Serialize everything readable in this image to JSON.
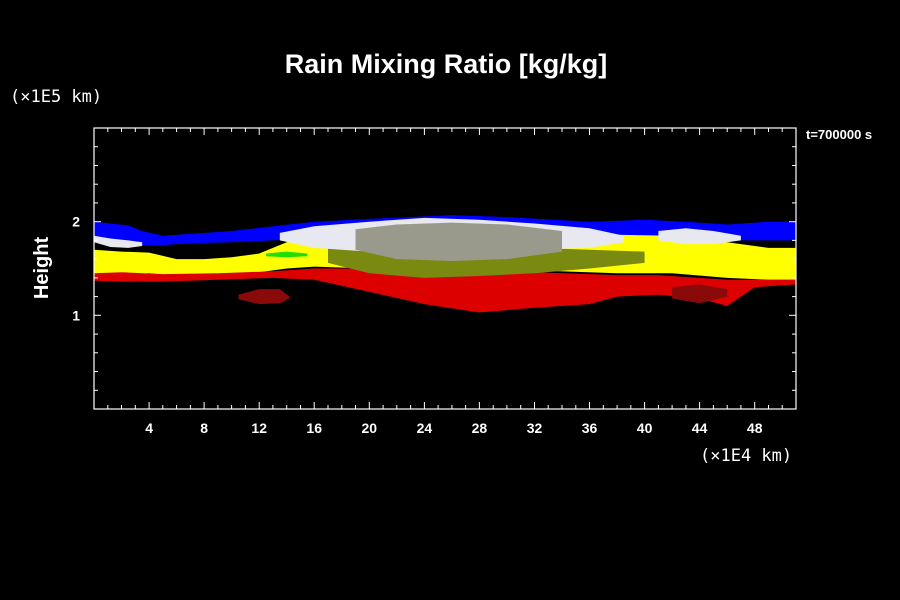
{
  "chart_data": {
    "type": "heatmap",
    "title": "Rain Mixing Ratio [kg/kg]",
    "ylabel": "Height",
    "xunit": "(×1E4 km)",
    "yunit": "(×1E5 km)",
    "annotation": "t=700000 s",
    "xlim": [
      0,
      51
    ],
    "ylim": [
      0,
      3
    ],
    "x_ticks": [
      4,
      8,
      12,
      16,
      20,
      24,
      28,
      32,
      36,
      40,
      44,
      48
    ],
    "y_ticks": [
      1,
      2
    ],
    "x_minor_step": 1,
    "y_minor_step": 0.2,
    "colors": {
      "blue": "#0000ff",
      "white": "#e8e8f0",
      "gray": "#9a9a8c",
      "yellow": "#ffff00",
      "olive": "#7a8a10",
      "green": "#22dd00",
      "red": "#dd0000",
      "darkred": "#8a0a0a"
    },
    "layers": [
      {
        "name": "upper-blue",
        "color": "blue",
        "x": [
          0,
          2.5,
          3.5,
          5,
          7,
          10,
          13,
          16,
          20,
          26,
          30,
          36,
          40,
          43,
          46,
          49,
          51
        ],
        "top": [
          2.0,
          1.96,
          1.9,
          1.85,
          1.87,
          1.9,
          1.95,
          2.0,
          2.03,
          2.07,
          2.05,
          2.0,
          2.02,
          2.0,
          1.97,
          2.0,
          2.0
        ],
        "bottom": [
          1.8,
          1.78,
          1.75,
          1.75,
          1.77,
          1.78,
          1.8,
          1.82,
          1.85,
          1.87,
          1.85,
          1.8,
          1.84,
          1.82,
          1.8,
          1.8,
          1.8
        ]
      },
      {
        "name": "yellow-band",
        "color": "yellow",
        "x": [
          0,
          2,
          4,
          6,
          8,
          10,
          12,
          14,
          16,
          20,
          26,
          32,
          38,
          42,
          46,
          49,
          51
        ],
        "top": [
          1.7,
          1.68,
          1.67,
          1.6,
          1.6,
          1.62,
          1.66,
          1.78,
          1.85,
          1.86,
          1.85,
          1.84,
          1.86,
          1.85,
          1.78,
          1.72,
          1.72
        ],
        "bottom": [
          1.42,
          1.43,
          1.45,
          1.42,
          1.43,
          1.44,
          1.46,
          1.5,
          1.52,
          1.5,
          1.48,
          1.48,
          1.45,
          1.45,
          1.4,
          1.38,
          1.38
        ]
      },
      {
        "name": "red-band",
        "color": "red",
        "x": [
          0,
          2,
          5,
          9,
          13,
          16,
          20,
          24,
          28,
          32,
          36,
          38,
          41,
          44,
          46,
          48,
          51
        ],
        "top": [
          1.45,
          1.46,
          1.44,
          1.45,
          1.47,
          1.5,
          1.5,
          1.48,
          1.46,
          1.46,
          1.44,
          1.43,
          1.43,
          1.4,
          1.38,
          1.38,
          1.38
        ],
        "bottom": [
          1.37,
          1.36,
          1.36,
          1.38,
          1.4,
          1.38,
          1.25,
          1.12,
          1.03,
          1.08,
          1.12,
          1.2,
          1.22,
          1.18,
          1.1,
          1.3,
          1.33
        ]
      },
      {
        "name": "olive-core",
        "color": "olive",
        "x": [
          17,
          20,
          24,
          28,
          32,
          36,
          40
        ],
        "top": [
          1.72,
          1.75,
          1.74,
          1.76,
          1.72,
          1.7,
          1.68
        ],
        "bottom": [
          1.56,
          1.45,
          1.4,
          1.42,
          1.45,
          1.5,
          1.56
        ]
      },
      {
        "name": "cloud-white",
        "color": "white",
        "x": [
          13.5,
          16,
          20,
          24,
          28,
          32,
          36,
          38.5
        ],
        "top": [
          1.88,
          1.95,
          2.0,
          2.04,
          2.02,
          1.98,
          1.93,
          1.85
        ],
        "bottom": [
          1.8,
          1.72,
          1.68,
          1.66,
          1.68,
          1.7,
          1.72,
          1.78
        ]
      },
      {
        "name": "cloud-core-gray",
        "color": "gray",
        "x": [
          19,
          22,
          26,
          30,
          34
        ],
        "top": [
          1.92,
          1.97,
          1.99,
          1.97,
          1.9
        ],
        "bottom": [
          1.7,
          1.6,
          1.58,
          1.6,
          1.68
        ]
      },
      {
        "name": "left-white-patch",
        "color": "white",
        "x": [
          0,
          1.2,
          2.5,
          3.5
        ],
        "top": [
          1.85,
          1.82,
          1.8,
          1.78
        ],
        "bottom": [
          1.78,
          1.73,
          1.72,
          1.74
        ]
      },
      {
        "name": "right-white-patch",
        "color": "white",
        "x": [
          41,
          43,
          45,
          47
        ],
        "top": [
          1.9,
          1.93,
          1.9,
          1.85
        ],
        "bottom": [
          1.8,
          1.76,
          1.76,
          1.8
        ]
      },
      {
        "name": "green-edge",
        "color": "green",
        "x": [
          12.5,
          14,
          15.5
        ],
        "top": [
          1.66,
          1.68,
          1.66
        ],
        "bottom": [
          1.63,
          1.62,
          1.63
        ]
      },
      {
        "name": "red-blob-left",
        "color": "darkred",
        "x": [
          10.5,
          12,
          13.5,
          14.2
        ],
        "top": [
          1.22,
          1.28,
          1.28,
          1.2
        ],
        "bottom": [
          1.17,
          1.12,
          1.13,
          1.18
        ]
      },
      {
        "name": "red-blob-right",
        "color": "darkred",
        "x": [
          42,
          44,
          46
        ],
        "top": [
          1.3,
          1.33,
          1.28
        ],
        "bottom": [
          1.18,
          1.13,
          1.2
        ]
      }
    ]
  }
}
